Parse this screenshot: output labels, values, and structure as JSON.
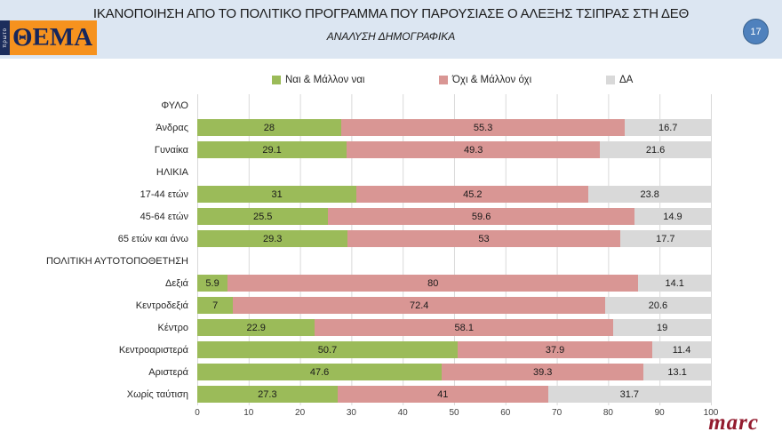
{
  "header": {
    "title": "ΙΚΑΝΟΠΟΙΗΣΗ ΑΠΟ ΤΟ ΠΟΛΙΤΙΚΟ ΠΡΟΓΡΑΜΜΑ ΠΟΥ ΠΑΡΟΥΣΙΑΣΕ Ο ΑΛΕΞΗΣ ΤΣΙΠΡΑΣ ΣΤΗ ΔΕΘ",
    "subtitle": "ΑΝΑΛΥΣΗ ΔΗΜΟΓΡΑΦΙΚΑ",
    "page_number": "17",
    "logo": {
      "brand_vertical": "πρωτο",
      "brand_main": "ΘΕΜΑ"
    }
  },
  "footer": {
    "agency_logo": "marc"
  },
  "colors": {
    "header_background": "#dce6f2",
    "yes_green": "#9bbb59",
    "no_pink": "#d99694",
    "dk_gray": "#d9d9d9",
    "gridline": "#d9d9d9",
    "page_circle_blue": "#4f81bd",
    "marc_red": "#931b2e",
    "logo_orange": "#f6921e",
    "logo_navy": "#1c2d5c"
  },
  "chart_data": {
    "type": "bar",
    "orientation": "horizontal",
    "stacked": true,
    "grid": true,
    "xlim": [
      0,
      100
    ],
    "x_ticks": [
      0,
      10,
      20,
      30,
      40,
      50,
      60,
      70,
      80,
      90,
      100
    ],
    "legend_position": "top",
    "legend": [
      {
        "label": "Ναι & Μάλλον ναι",
        "color": "#9bbb59"
      },
      {
        "label": "Όχι & Μάλλον όχι",
        "color": "#d99694"
      },
      {
        "label": "ΔΑ",
        "color": "#d9d9d9"
      }
    ],
    "rows": [
      {
        "type": "section",
        "label": "ΦΥΛΟ"
      },
      {
        "type": "data",
        "label": "Άνδρας",
        "values": [
          28,
          55.3,
          16.7
        ]
      },
      {
        "type": "data",
        "label": "Γυναίκα",
        "values": [
          29.1,
          49.3,
          21.6
        ]
      },
      {
        "type": "section",
        "label": "ΗΛΙΚΙΑ"
      },
      {
        "type": "data",
        "label": "17-44 ετών",
        "values": [
          31,
          45.2,
          23.8
        ]
      },
      {
        "type": "data",
        "label": "45-64 ετών",
        "values": [
          25.5,
          59.6,
          14.9
        ]
      },
      {
        "type": "data",
        "label": "65 ετών και άνω",
        "values": [
          29.3,
          53,
          17.7
        ]
      },
      {
        "type": "section",
        "label": "ΠΟΛΙΤΙΚΗ ΑΥΤΟΤΟΠΟΘΕΤΗΣΗ"
      },
      {
        "type": "data",
        "label": "Δεξιά",
        "values": [
          5.9,
          80,
          14.1
        ]
      },
      {
        "type": "data",
        "label": "Κεντροδεξιά",
        "values": [
          7,
          72.4,
          20.6
        ]
      },
      {
        "type": "data",
        "label": "Κέντρο",
        "values": [
          22.9,
          58.1,
          19
        ]
      },
      {
        "type": "data",
        "label": "Κεντροαριστερά",
        "values": [
          50.7,
          37.9,
          11.4
        ]
      },
      {
        "type": "data",
        "label": "Αριστερά",
        "values": [
          47.6,
          39.3,
          13.1
        ]
      },
      {
        "type": "data",
        "label": "Χωρίς ταύτιση",
        "values": [
          27.3,
          41,
          31.7
        ]
      }
    ]
  }
}
